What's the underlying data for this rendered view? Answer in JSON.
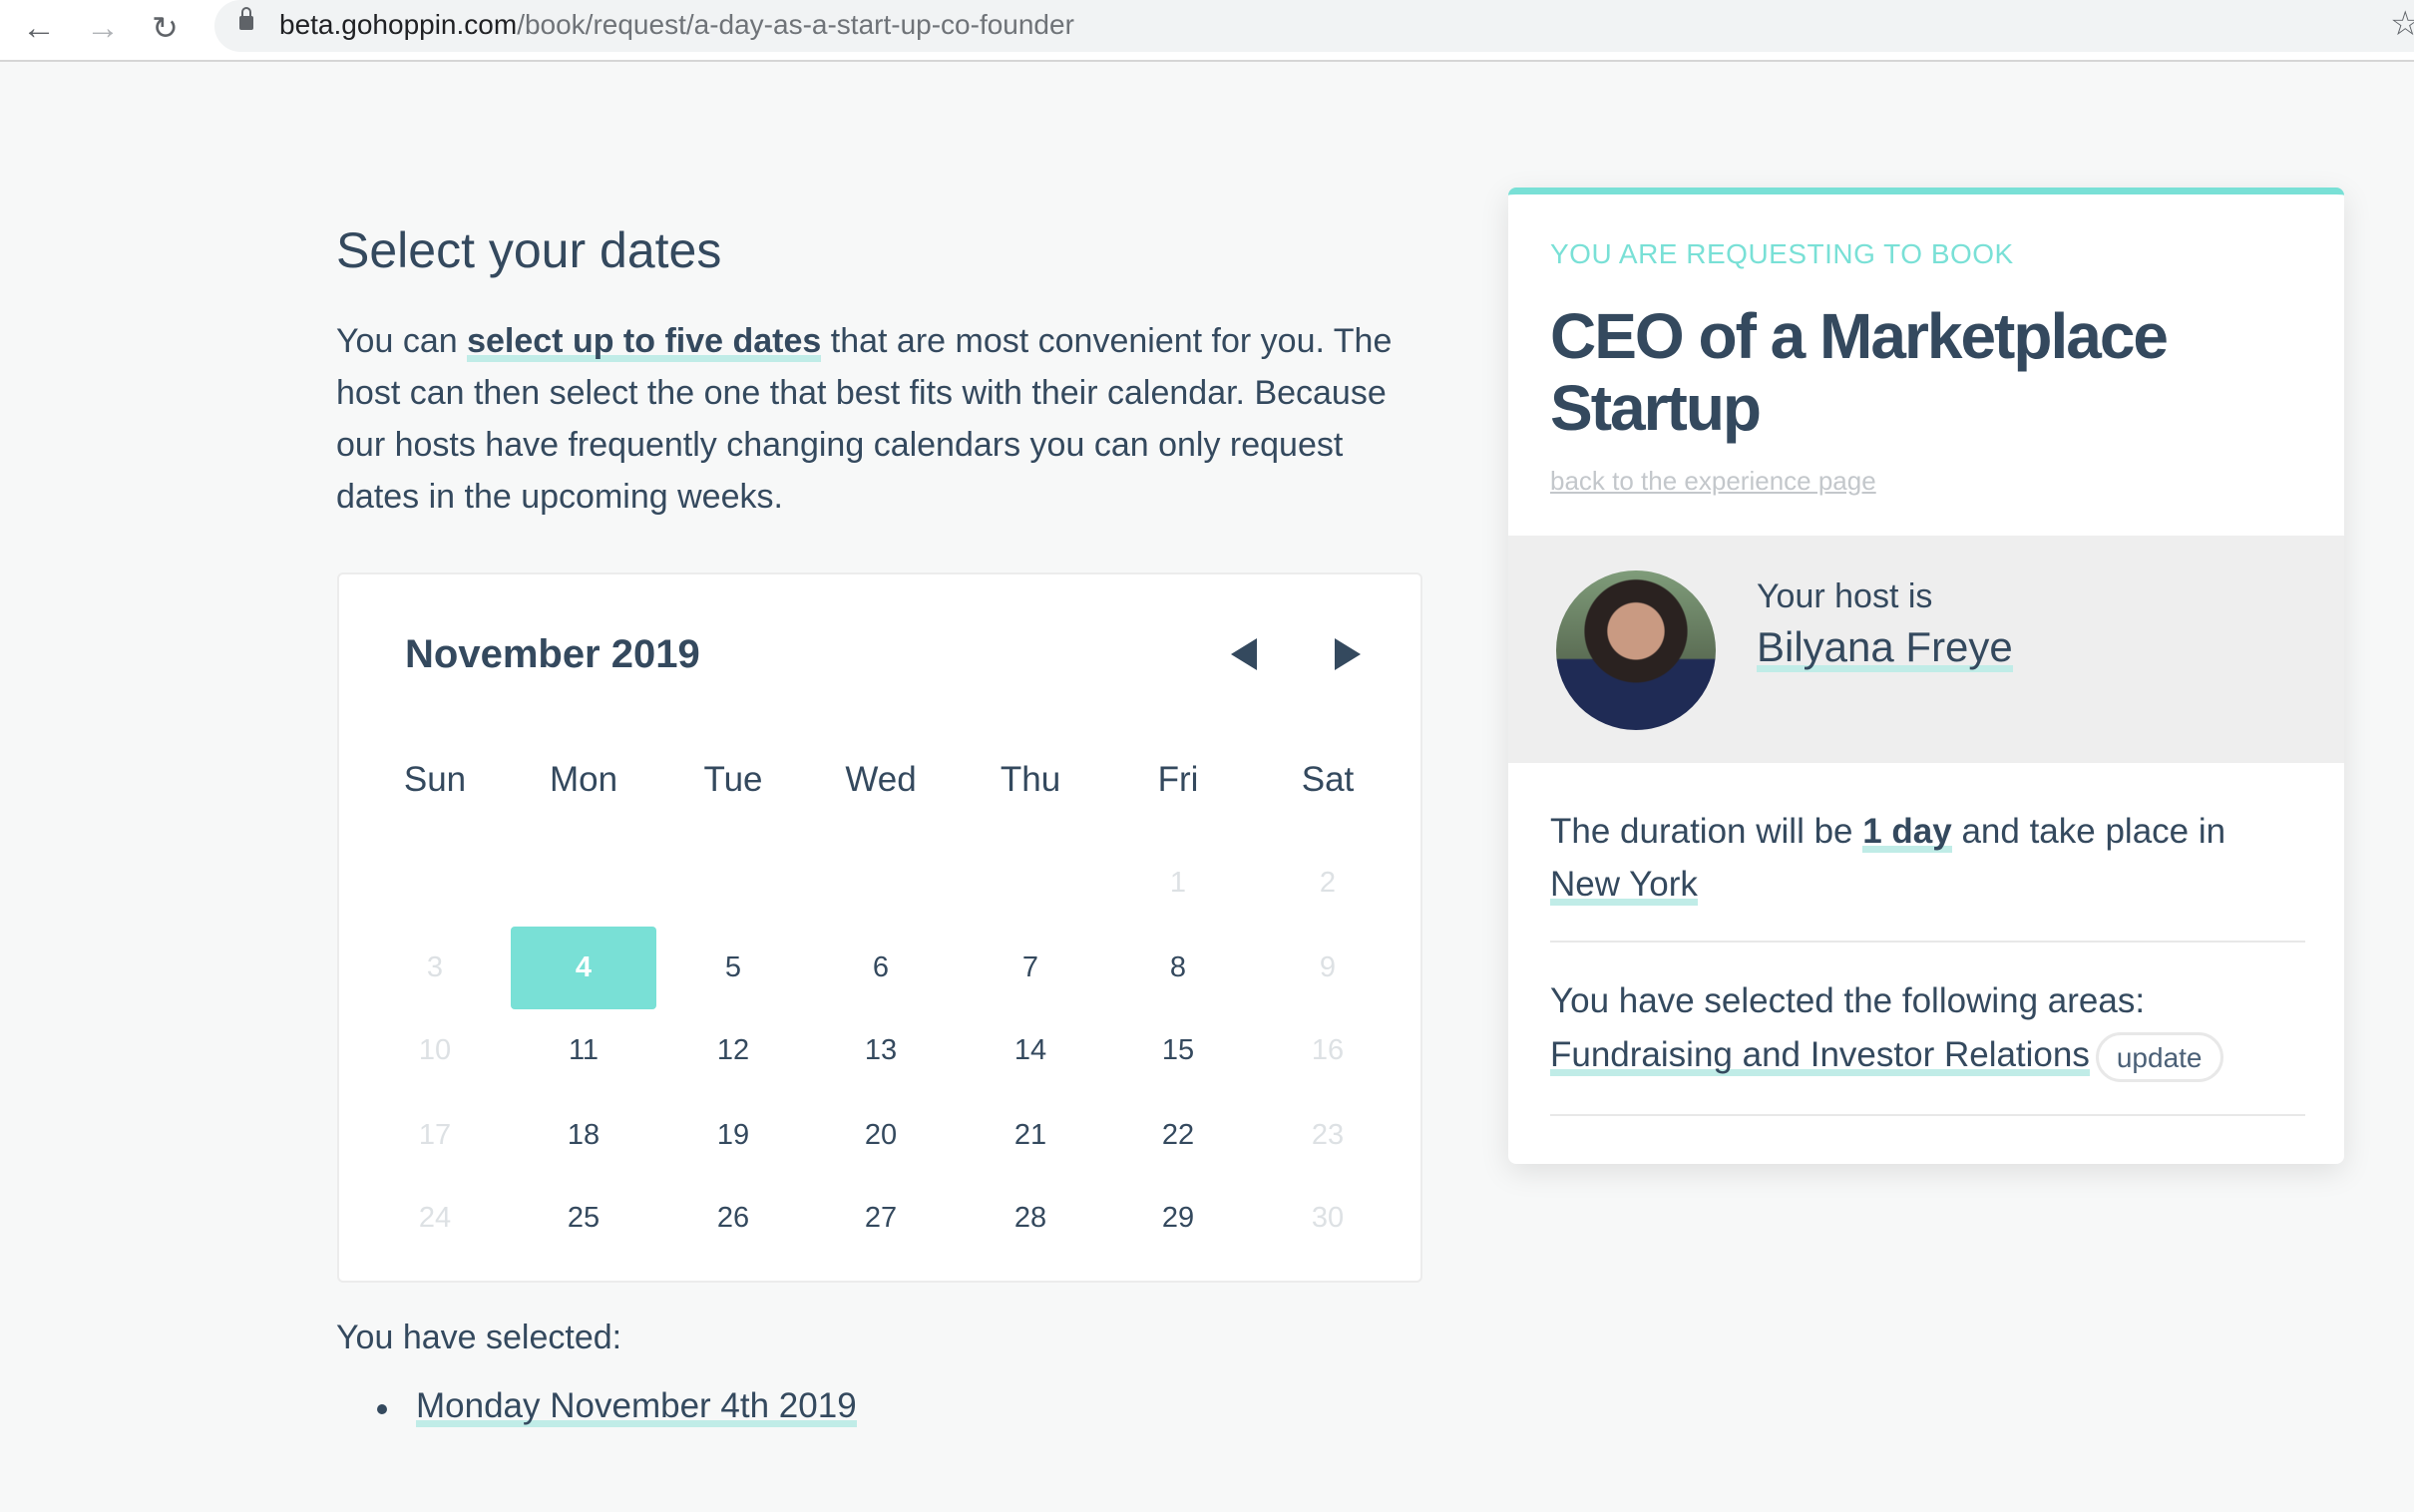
{
  "browser": {
    "url_host": "beta.gohoppin.com",
    "url_path": "/book/request/a-day-as-a-start-up-co-founder",
    "icons": [
      "back-arrow-icon",
      "forward-arrow-icon",
      "reload-icon",
      "lock-icon",
      "star-icon"
    ]
  },
  "main": {
    "title": "Select your dates",
    "intro_before": "You can ",
    "intro_link": "select up to five dates",
    "intro_after": " that are most convenient for you. The host can then select the one that best fits with their calendar. Because our hosts have frequently changing calendars you can only request dates in the upcoming weeks.",
    "calendar": {
      "month": "November 2019",
      "weekdays": [
        "Sun",
        "Mon",
        "Tue",
        "Wed",
        "Thu",
        "Fri",
        "Sat"
      ],
      "weeks": [
        [
          null,
          null,
          null,
          null,
          null,
          {
            "d": "1",
            "s": "disabled"
          },
          {
            "d": "2",
            "s": "disabled"
          }
        ],
        [
          {
            "d": "3",
            "s": "disabled"
          },
          {
            "d": "4",
            "s": "selected"
          },
          {
            "d": "5",
            "s": "available"
          },
          {
            "d": "6",
            "s": "available"
          },
          {
            "d": "7",
            "s": "available"
          },
          {
            "d": "8",
            "s": "available"
          },
          {
            "d": "9",
            "s": "disabled"
          }
        ],
        [
          {
            "d": "10",
            "s": "disabled"
          },
          {
            "d": "11",
            "s": "available"
          },
          {
            "d": "12",
            "s": "available"
          },
          {
            "d": "13",
            "s": "available"
          },
          {
            "d": "14",
            "s": "available"
          },
          {
            "d": "15",
            "s": "available"
          },
          {
            "d": "16",
            "s": "disabled"
          }
        ],
        [
          {
            "d": "17",
            "s": "disabled"
          },
          {
            "d": "18",
            "s": "available"
          },
          {
            "d": "19",
            "s": "available"
          },
          {
            "d": "20",
            "s": "available"
          },
          {
            "d": "21",
            "s": "available"
          },
          {
            "d": "22",
            "s": "available"
          },
          {
            "d": "23",
            "s": "disabled"
          }
        ],
        [
          {
            "d": "24",
            "s": "disabled"
          },
          {
            "d": "25",
            "s": "available"
          },
          {
            "d": "26",
            "s": "available"
          },
          {
            "d": "27",
            "s": "available"
          },
          {
            "d": "28",
            "s": "available"
          },
          {
            "d": "29",
            "s": "available"
          },
          {
            "d": "30",
            "s": "disabled"
          }
        ]
      ]
    },
    "selected_label": "You have selected:",
    "selected_dates": [
      "Monday November 4th 2019"
    ]
  },
  "card": {
    "eyebrow": "YOU ARE REQUESTING TO BOOK",
    "title": "CEO of a Marketplace Startup",
    "back_link": "back to the experience page",
    "host_label": "Your host is",
    "host_name": "Bilyana Freye",
    "duration_before": "The duration will be ",
    "duration_value": "1 day",
    "duration_mid": " and take place in ",
    "location": "New York",
    "areas_label": "You have selected the following areas:",
    "area": "Fundraising and Investor Relations",
    "update_label": "update"
  },
  "colors": {
    "accent": "#79e0d6",
    "text": "#34495e",
    "underline": "#c0ece7",
    "background": "#f7f8f8"
  }
}
